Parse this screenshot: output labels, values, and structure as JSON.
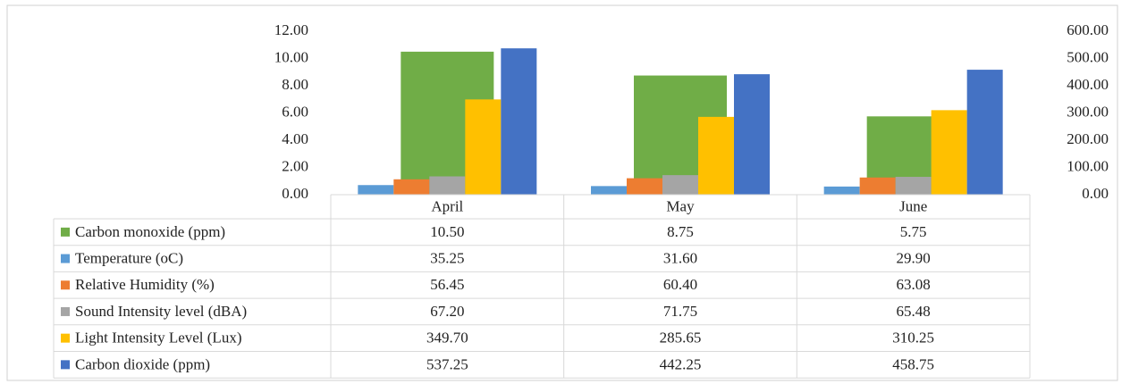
{
  "chart_data": {
    "type": "bar",
    "categories": [
      "April",
      "May",
      "June"
    ],
    "series": [
      {
        "name": "Carbon monoxide (ppm)",
        "color": "#70ad47",
        "axis": "y",
        "values": [
          10.5,
          8.75,
          5.75
        ],
        "value_labels": [
          "10.50",
          "8.75",
          "5.75"
        ]
      },
      {
        "name": "Temperature (oC)",
        "color": "#5b9bd5",
        "axis": "y2",
        "values": [
          35.25,
          31.6,
          29.9
        ],
        "value_labels": [
          "35.25",
          "31.60",
          "29.90"
        ]
      },
      {
        "name": "Relative Humidity (%)",
        "color": "#ed7d31",
        "axis": "y2",
        "values": [
          56.45,
          60.4,
          63.08
        ],
        "value_labels": [
          "56.45",
          "60.40",
          "63.08"
        ]
      },
      {
        "name": "Sound Intensity level (dBA)",
        "color": "#a5a5a5",
        "axis": "y2",
        "values": [
          67.2,
          71.75,
          65.48
        ],
        "value_labels": [
          "67.20",
          "71.75",
          "65.48"
        ]
      },
      {
        "name": "Light Intensity Level (Lux)",
        "color": "#ffc000",
        "axis": "y2",
        "values": [
          349.7,
          285.65,
          310.25
        ],
        "value_labels": [
          "349.70",
          "285.65",
          "310.25"
        ]
      },
      {
        "name": "Carbon dioxide (ppm)",
        "color": "#4472c4",
        "axis": "y2",
        "values": [
          537.25,
          442.25,
          458.75
        ],
        "value_labels": [
          "537.25",
          "442.25",
          "458.75"
        ]
      }
    ],
    "ylim": [
      0,
      12
    ],
    "yticks": [
      {
        "value": 0,
        "label": "0.00"
      },
      {
        "value": 2,
        "label": "2.00"
      },
      {
        "value": 4,
        "label": "4.00"
      },
      {
        "value": 6,
        "label": "6.00"
      },
      {
        "value": 8,
        "label": "8.00"
      },
      {
        "value": 10,
        "label": "10.00"
      },
      {
        "value": 12,
        "label": "12.00"
      }
    ],
    "y2lim": [
      0,
      600
    ],
    "y2ticks": [
      {
        "value": 0,
        "label": "0.00"
      },
      {
        "value": 100,
        "label": "100.00"
      },
      {
        "value": 200,
        "label": "200.00"
      },
      {
        "value": 300,
        "label": "300.00"
      },
      {
        "value": 400,
        "label": "400.00"
      },
      {
        "value": 500,
        "label": "500.00"
      },
      {
        "value": 600,
        "label": "600.00"
      }
    ]
  }
}
